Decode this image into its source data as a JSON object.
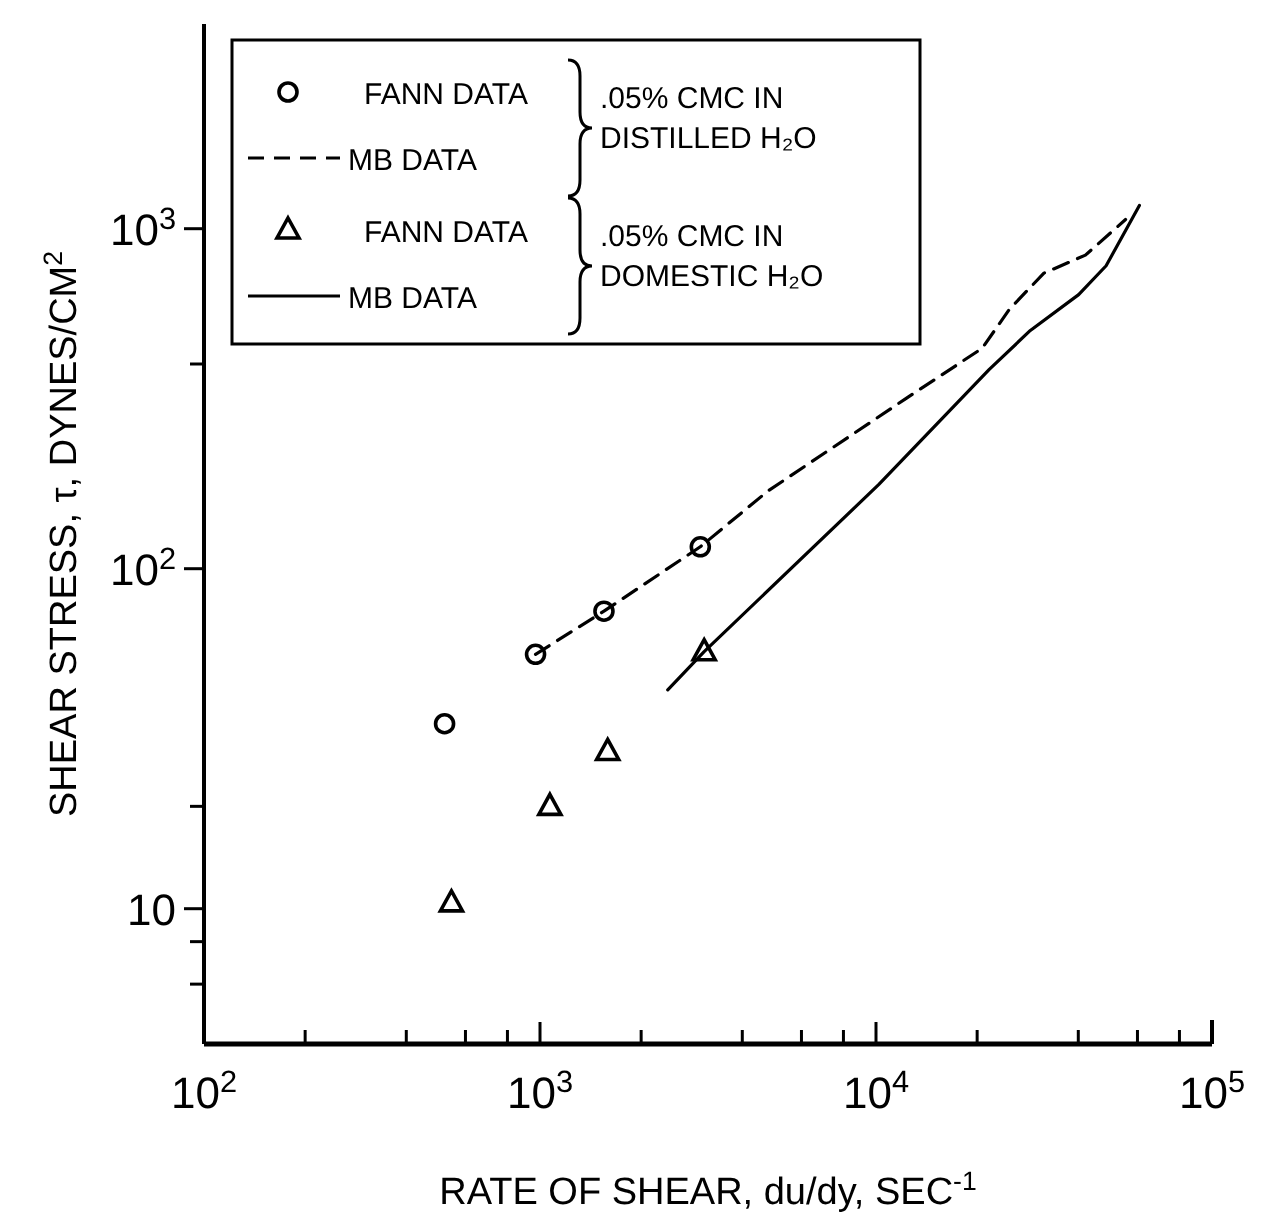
{
  "chart_data": {
    "type": "scatter",
    "log": "xy",
    "xlabel": "RATE OF SHEAR, du/dy, SEC$^{-1}$",
    "ylabel": "SHEAR STRESS, τ, DYNES/CM$^{2}$",
    "xlim": [
      100,
      100000
    ],
    "ylim": [
      4,
      4000
    ],
    "xticks": [
      {
        "value": 100,
        "label": "10$^{2}$"
      },
      {
        "value": 200,
        "label": null
      },
      {
        "value": 400,
        "label": null
      },
      {
        "value": 600,
        "label": null
      },
      {
        "value": 800,
        "label": null
      },
      {
        "value": 1000,
        "label": "10$^{3}$"
      },
      {
        "value": 2000,
        "label": null
      },
      {
        "value": 4000,
        "label": null
      },
      {
        "value": 6000,
        "label": null
      },
      {
        "value": 8000,
        "label": null
      },
      {
        "value": 10000,
        "label": "10$^{4}$"
      },
      {
        "value": 20000,
        "label": null
      },
      {
        "value": 40000,
        "label": null
      },
      {
        "value": 60000,
        "label": null
      },
      {
        "value": 80000,
        "label": null
      },
      {
        "value": 100000,
        "label": "10$^{5}$"
      }
    ],
    "yticks": [
      {
        "value": 6,
        "label": null
      },
      {
        "value": 8,
        "label": null
      },
      10,
      {
        "value": 20,
        "label": null
      },
      {
        "value": 100,
        "label": "10$^{2}$"
      },
      {
        "value": 400,
        "label": null
      },
      {
        "value": 1000,
        "label": "10$^{3}$"
      }
    ],
    "legend": "top left",
    "annotations": [
      ".05% CMC IN DISTILLED H₂O",
      ".05% CMC IN DOMESTIC H₂O"
    ],
    "series": [
      {
        "name": "FANN DATA",
        "marker": "circle",
        "color": "#000000",
        "x": [
          520,
          970,
          1550,
          3000
        ],
        "values": [
          35,
          56,
          75,
          116
        ]
      },
      {
        "name": "MB DATA",
        "type": "line",
        "line_style": "dashed",
        "color": "#000000",
        "x": [
          970,
          1550,
          3000,
          4760,
          12300,
          20700,
          25000,
          31600,
          42000,
          55300
        ],
        "values": [
          56,
          75,
          116,
          169,
          317,
          445,
          581,
          740,
          836,
          1064
        ]
      },
      {
        "name": "FANN DATA",
        "marker": "triangle",
        "color": "#000000",
        "x": [
          545,
          1070,
          1590,
          3080
        ],
        "values": [
          10.4,
          20,
          29,
          57
        ]
      },
      {
        "name": "MB DATA",
        "type": "line",
        "line_style": "solid",
        "color": "#000000",
        "x": [
          2400,
          3080,
          10200,
          21700,
          28800,
          40100,
          48400,
          60800
        ],
        "values": [
          44,
          57,
          177,
          385,
          502,
          640,
          778,
          1170
        ]
      }
    ]
  }
}
